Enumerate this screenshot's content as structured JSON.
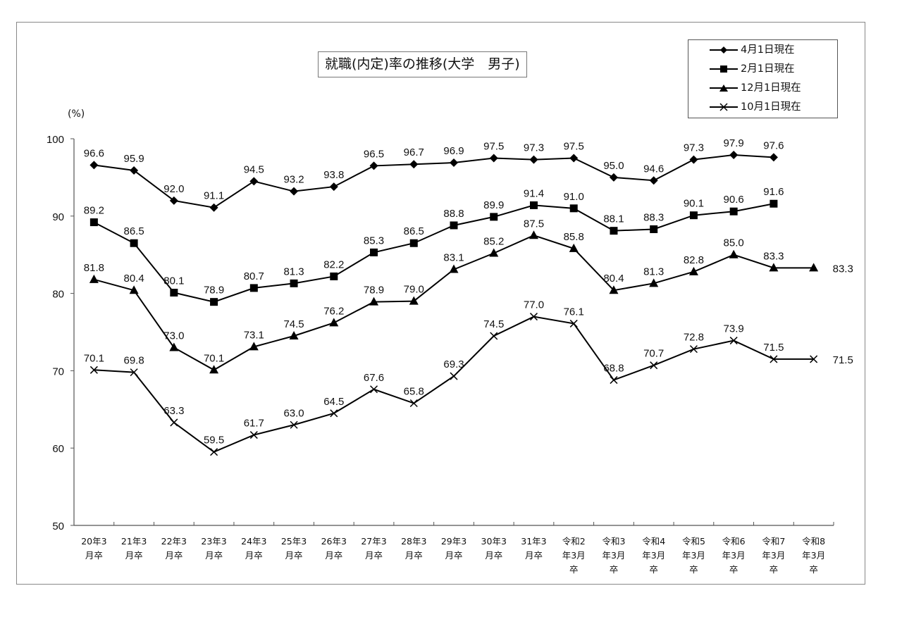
{
  "chart_data": {
    "type": "line",
    "title": "就職(内定)率の推移(大学　男子)",
    "xlabel": "",
    "ylabel": "(%)",
    "ylim": [
      50,
      100
    ],
    "yticks": [
      50,
      60,
      70,
      80,
      90,
      100
    ],
    "grid": false,
    "legend_position": "top-right",
    "categories": [
      "20年3月卒",
      "21年3月卒",
      "22年3月卒",
      "23年3月卒",
      "24年3月卒",
      "25年3月卒",
      "26年3月卒",
      "27年3月卒",
      "28年3月卒",
      "29年3月卒",
      "30年3月卒",
      "31年3月卒",
      "令和2年3月卒",
      "令和3年3月卒",
      "令和4年3月卒",
      "令和5年3月卒",
      "令和6年3月卒",
      "令和7年3月卒",
      "令和8年3月卒"
    ],
    "category_lines": [
      [
        "20年3",
        "月卒"
      ],
      [
        "21年3",
        "月卒"
      ],
      [
        "22年3",
        "月卒"
      ],
      [
        "23年3",
        "月卒"
      ],
      [
        "24年3",
        "月卒"
      ],
      [
        "25年3",
        "月卒"
      ],
      [
        "26年3",
        "月卒"
      ],
      [
        "27年3",
        "月卒"
      ],
      [
        "28年3",
        "月卒"
      ],
      [
        "29年3",
        "月卒"
      ],
      [
        "30年3",
        "月卒"
      ],
      [
        "31年3",
        "月卒"
      ],
      [
        "令和2",
        "年3月",
        "卒"
      ],
      [
        "令和3",
        "年3月",
        "卒"
      ],
      [
        "令和4",
        "年3月",
        "卒"
      ],
      [
        "令和5",
        "年3月",
        "卒"
      ],
      [
        "令和6",
        "年3月",
        "卒"
      ],
      [
        "令和7",
        "年3月",
        "卒"
      ],
      [
        "令和8",
        "年3月",
        "卒"
      ]
    ],
    "series": [
      {
        "name": "4月1日現在",
        "marker": "diamond",
        "values": [
          96.6,
          95.9,
          92.0,
          91.1,
          94.5,
          93.2,
          93.8,
          96.5,
          96.7,
          96.9,
          97.5,
          97.3,
          97.5,
          95.0,
          94.6,
          97.3,
          97.9,
          97.6,
          null
        ]
      },
      {
        "name": "2月1日現在",
        "marker": "square",
        "values": [
          89.2,
          86.5,
          80.1,
          78.9,
          80.7,
          81.3,
          82.2,
          85.3,
          86.5,
          88.8,
          89.9,
          91.4,
          91.0,
          88.1,
          88.3,
          90.1,
          90.6,
          91.6,
          null
        ]
      },
      {
        "name": "12月1日現在",
        "marker": "triangle",
        "values": [
          81.8,
          80.4,
          73.0,
          70.1,
          73.1,
          74.5,
          76.2,
          78.9,
          79.0,
          83.1,
          85.2,
          87.5,
          85.8,
          80.4,
          81.3,
          82.8,
          85.0,
          83.3,
          83.3
        ]
      },
      {
        "name": "10月1日現在",
        "marker": "x",
        "values": [
          70.1,
          69.8,
          63.3,
          59.5,
          61.7,
          63.0,
          64.5,
          67.6,
          65.8,
          69.3,
          74.5,
          77.0,
          76.1,
          68.8,
          70.7,
          72.8,
          73.9,
          71.5,
          71.5
        ]
      }
    ]
  },
  "colors": {
    "line": "#000000",
    "frame": "#888888",
    "axis": "#555555"
  }
}
